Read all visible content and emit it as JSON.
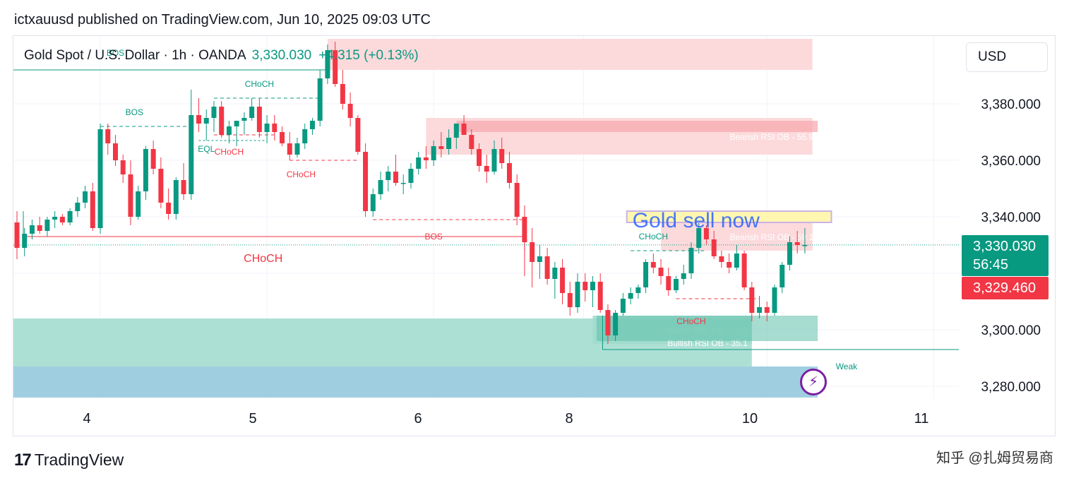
{
  "header": {
    "published_line": "ictxauusd published on TradingView.com, Jun 10, 2025 09:03 UTC"
  },
  "legend": {
    "symbol_line": "Gold Spot / U.S. Dollar · 1h · OANDA",
    "price": "3,330.030",
    "change": "+4.315 (+0.13%)"
  },
  "currency_button": "USD",
  "price_tags": {
    "current_price": "3,330.030",
    "countdown": "56:45",
    "bid_price": "3,329.460"
  },
  "footer": {
    "brand": "TradingView",
    "watermark": "知乎 @扎姆贸易商"
  },
  "colors": {
    "up": "#089981",
    "down": "#f23645",
    "bearish_zone": "#fbd3d6",
    "bullish_zone": "#9fdacd",
    "weak_zone": "#d3e3fb",
    "annotation_blue": "#2962ff",
    "highlight_yellow": "#fff6b0"
  },
  "chart_data": {
    "type": "candlestick",
    "timeframe": "1h",
    "ylim": [
      3270,
      3400
    ],
    "y_ticks": [
      "3,380.000",
      "3,360.000",
      "3,340.000",
      "3,300.000",
      "3,280.000"
    ],
    "y_tick_values": [
      3380,
      3360,
      3340,
      3300,
      3280
    ],
    "x_ticks": [
      "4",
      "5",
      "6",
      "8",
      "10",
      "11"
    ],
    "x_tick_positions": [
      5,
      15,
      25,
      34,
      45,
      55
    ],
    "last_price": 3330.03,
    "candles": [
      [
        3338,
        3342,
        3325,
        3329
      ],
      [
        3329,
        3336,
        3326,
        3334
      ],
      [
        3334,
        3339,
        3332,
        3337
      ],
      [
        3337,
        3340,
        3334,
        3335
      ],
      [
        3335,
        3340,
        3333,
        3339
      ],
      [
        3339,
        3342,
        3336,
        3340
      ],
      [
        3340,
        3341,
        3337,
        3338
      ],
      [
        3338,
        3343,
        3337,
        3342
      ],
      [
        3342,
        3347,
        3340,
        3345
      ],
      [
        3345,
        3351,
        3343,
        3349
      ],
      [
        3349,
        3352,
        3335,
        3336
      ],
      [
        3336,
        3373,
        3334,
        3371
      ],
      [
        3371,
        3373,
        3362,
        3366
      ],
      [
        3366,
        3369,
        3358,
        3360
      ],
      [
        3360,
        3362,
        3352,
        3355
      ],
      [
        3355,
        3360,
        3337,
        3340
      ],
      [
        3340,
        3351,
        3339,
        3349
      ],
      [
        3349,
        3365,
        3346,
        3364
      ],
      [
        3364,
        3367,
        3355,
        3357
      ],
      [
        3357,
        3361,
        3343,
        3345
      ],
      [
        3345,
        3350,
        3339,
        3341
      ],
      [
        3341,
        3354,
        3339,
        3353
      ],
      [
        3353,
        3359,
        3346,
        3348
      ],
      [
        3348,
        3385,
        3346,
        3376
      ],
      [
        3376,
        3382,
        3370,
        3373
      ],
      [
        3373,
        3378,
        3367,
        3375
      ],
      [
        3375,
        3381,
        3370,
        3379
      ],
      [
        3379,
        3381,
        3368,
        3369
      ],
      [
        3369,
        3374,
        3366,
        3372
      ],
      [
        3372,
        3374,
        3365,
        3374
      ],
      [
        3374,
        3377,
        3369,
        3375
      ],
      [
        3375,
        3382,
        3374,
        3379
      ],
      [
        3379,
        3382,
        3368,
        3370
      ],
      [
        3370,
        3376,
        3366,
        3373
      ],
      [
        3373,
        3376,
        3367,
        3370
      ],
      [
        3370,
        3372,
        3365,
        3366
      ],
      [
        3366,
        3370,
        3360,
        3362
      ],
      [
        3362,
        3368,
        3361,
        3366
      ],
      [
        3366,
        3373,
        3364,
        3371
      ],
      [
        3371,
        3375,
        3369,
        3374
      ],
      [
        3374,
        3392,
        3372,
        3389
      ],
      [
        3389,
        3401,
        3387,
        3399
      ],
      [
        3399,
        3402,
        3386,
        3387
      ],
      [
        3387,
        3392,
        3378,
        3380
      ],
      [
        3380,
        3384,
        3372,
        3375
      ],
      [
        3375,
        3376,
        3362,
        3363
      ],
      [
        3363,
        3366,
        3340,
        3342
      ],
      [
        3342,
        3350,
        3340,
        3348
      ],
      [
        3348,
        3356,
        3346,
        3353
      ],
      [
        3353,
        3358,
        3349,
        3356
      ],
      [
        3356,
        3362,
        3351,
        3352
      ],
      [
        3352,
        3355,
        3348,
        3352
      ],
      [
        3352,
        3359,
        3350,
        3357
      ],
      [
        3357,
        3363,
        3355,
        3361
      ],
      [
        3361,
        3365,
        3357,
        3360
      ],
      [
        3360,
        3367,
        3358,
        3365
      ],
      [
        3365,
        3370,
        3361,
        3364
      ],
      [
        3364,
        3371,
        3362,
        3368
      ],
      [
        3368,
        3373,
        3364,
        3373
      ],
      [
        3373,
        3376,
        3369,
        3369
      ],
      [
        3369,
        3371,
        3362,
        3364
      ],
      [
        3364,
        3366,
        3356,
        3358
      ],
      [
        3358,
        3362,
        3352,
        3356
      ],
      [
        3356,
        3367,
        3355,
        3364
      ],
      [
        3364,
        3368,
        3357,
        3359
      ],
      [
        3359,
        3363,
        3350,
        3352
      ],
      [
        3352,
        3355,
        3337,
        3340
      ],
      [
        3340,
        3344,
        3328,
        3331
      ],
      [
        3331,
        3336,
        3315,
        3324
      ],
      [
        3324,
        3330,
        3318,
        3326
      ],
      [
        3326,
        3329,
        3316,
        3318
      ],
      [
        3318,
        3324,
        3311,
        3322
      ],
      [
        3322,
        3325,
        3309,
        3313
      ],
      [
        3313,
        3317,
        3305,
        3308
      ],
      [
        3308,
        3320,
        3306,
        3317
      ],
      [
        3317,
        3320,
        3310,
        3314
      ],
      [
        3314,
        3319,
        3308,
        3317
      ],
      [
        3317,
        3320,
        3306,
        3307
      ],
      [
        3307,
        3309,
        3295,
        3298
      ],
      [
        3298,
        3307,
        3296,
        3306
      ],
      [
        3306,
        3313,
        3305,
        3311
      ],
      [
        3311,
        3315,
        3309,
        3313
      ],
      [
        3313,
        3316,
        3311,
        3315
      ],
      [
        3315,
        3325,
        3313,
        3324
      ],
      [
        3324,
        3327,
        3320,
        3322
      ],
      [
        3322,
        3325,
        3316,
        3319
      ],
      [
        3319,
        3322,
        3312,
        3314
      ],
      [
        3314,
        3319,
        3313,
        3318
      ],
      [
        3318,
        3323,
        3316,
        3320
      ],
      [
        3320,
        3331,
        3318,
        3329
      ],
      [
        3329,
        3338,
        3327,
        3336
      ],
      [
        3336,
        3337,
        3330,
        3332
      ],
      [
        3332,
        3335,
        3325,
        3326
      ],
      [
        3326,
        3328,
        3322,
        3324
      ],
      [
        3324,
        3327,
        3320,
        3322
      ],
      [
        3322,
        3330,
        3321,
        3327
      ],
      [
        3327,
        3328,
        3314,
        3315
      ],
      [
        3315,
        3317,
        3303,
        3306
      ],
      [
        3306,
        3312,
        3304,
        3308
      ],
      [
        3308,
        3310,
        3303,
        3306
      ],
      [
        3306,
        3316,
        3305,
        3315
      ],
      [
        3315,
        3324,
        3313,
        3323
      ],
      [
        3323,
        3333,
        3321,
        3331
      ],
      [
        3331,
        3335,
        3327,
        3330
      ],
      [
        3330,
        3336,
        3327,
        3330
      ]
    ],
    "zones": [
      {
        "label": "",
        "kind": "bearish",
        "from": 3392,
        "to": 3403,
        "x1": 41,
        "x2": 105
      },
      {
        "label": "Bearish RSI OB - 55.9",
        "kind": "bearish",
        "from": 3362,
        "to": 3375,
        "x1": 54,
        "x2": 105
      },
      {
        "label": "Bearish RSI OB - 59.1",
        "kind": "bearish",
        "from": 3328,
        "to": 3338,
        "x1": 85,
        "x2": 105
      },
      {
        "label": "Bullish RSI OB - 25.8",
        "kind": "bullish",
        "from": 3295,
        "to": 3305,
        "x1": 76,
        "x2": 97
      },
      {
        "label": "Bullish RSI OB - 35.1",
        "kind": "bullish",
        "from": 3287,
        "to": 3304,
        "x1": 0,
        "x2": 97
      },
      {
        "label": "",
        "kind": "weak",
        "from": 3276,
        "to": 3287,
        "x1": 0,
        "x2": 105
      }
    ],
    "structure_labels": [
      {
        "text": "BOS",
        "x": 13,
        "price": 3398,
        "color": "up"
      },
      {
        "text": "BOS",
        "x": 15.5,
        "price": 3377,
        "color": "up"
      },
      {
        "text": "CHoCH",
        "x": 32,
        "price": 3387,
        "color": "up"
      },
      {
        "text": "EQL",
        "x": 25,
        "price": 3364,
        "color": "up"
      },
      {
        "text": "CHoCH",
        "x": 28,
        "price": 3363,
        "color": "down"
      },
      {
        "text": "CHoCH",
        "x": 37.5,
        "price": 3355,
        "color": "down"
      },
      {
        "text": "BOS",
        "x": 55,
        "price": 3333,
        "color": "down"
      },
      {
        "text": "CHoCH",
        "x": 32.5,
        "price": 3325,
        "color": "down"
      },
      {
        "text": "CHoCH",
        "x": 84,
        "price": 3333,
        "color": "up"
      },
      {
        "text": "CHoCH",
        "x": 89,
        "price": 3303,
        "color": "down"
      },
      {
        "text": "Weak",
        "x": 109.5,
        "price": 3287,
        "color": "up"
      }
    ],
    "annotation": {
      "text": "Gold sell now",
      "price": 3339,
      "x1": 80.5,
      "x2": 107.5
    }
  }
}
